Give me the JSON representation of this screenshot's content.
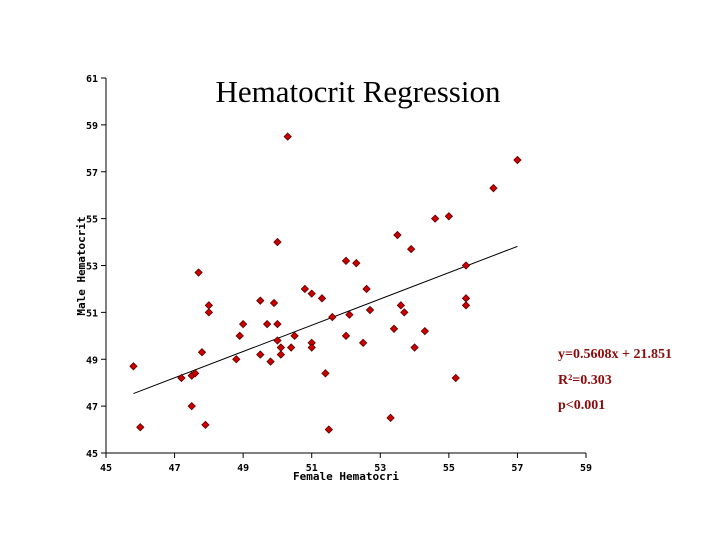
{
  "chart_data": {
    "type": "scatter",
    "title": "Hematocrit Regression",
    "xlabel": "Female Hematocri",
    "ylabel": "Male Hematocrit",
    "xlim": [
      45,
      59
    ],
    "ylim": [
      45,
      61
    ],
    "xticks": [
      "45",
      "47",
      "49",
      "51",
      "53",
      "55",
      "57",
      "59"
    ],
    "yticks": [
      "45",
      "47",
      "49",
      "51",
      "53",
      "55",
      "57",
      "59",
      "61"
    ],
    "grid": false,
    "legend": "none",
    "marker_color": "#cc0000",
    "marker_outline": "#5a0000",
    "annotation_color": "#8b0a0a",
    "annotations": [
      "y=0.5608x + 21.851",
      "R²=0.303",
      "p<0.001"
    ],
    "trendline": {
      "slope": 0.5608,
      "intercept": 21.851,
      "x_range": [
        45.8,
        57.0
      ]
    },
    "series": [
      {
        "points": [
          [
            45.8,
            48.7
          ],
          [
            46.0,
            46.1
          ],
          [
            47.2,
            48.2
          ],
          [
            47.5,
            48.3
          ],
          [
            47.5,
            47.0
          ],
          [
            47.6,
            48.4
          ],
          [
            47.7,
            52.7
          ],
          [
            47.8,
            49.3
          ],
          [
            47.9,
            46.2
          ],
          [
            48.0,
            51.0
          ],
          [
            48.0,
            51.3
          ],
          [
            48.8,
            49.0
          ],
          [
            48.9,
            50.0
          ],
          [
            49.0,
            50.5
          ],
          [
            49.5,
            49.2
          ],
          [
            49.5,
            51.5
          ],
          [
            49.7,
            50.5
          ],
          [
            49.8,
            48.9
          ],
          [
            49.9,
            51.4
          ],
          [
            50.0,
            50.5
          ],
          [
            50.0,
            49.8
          ],
          [
            50.0,
            54.0
          ],
          [
            50.1,
            49.2
          ],
          [
            50.1,
            49.5
          ],
          [
            50.3,
            58.5
          ],
          [
            50.4,
            49.5
          ],
          [
            50.5,
            50.0
          ],
          [
            50.8,
            52.0
          ],
          [
            51.0,
            51.8
          ],
          [
            51.0,
            49.7
          ],
          [
            51.0,
            49.5
          ],
          [
            51.3,
            51.6
          ],
          [
            51.4,
            48.4
          ],
          [
            51.5,
            46.0
          ],
          [
            51.6,
            50.8
          ],
          [
            52.0,
            53.2
          ],
          [
            52.0,
            50.0
          ],
          [
            52.1,
            50.9
          ],
          [
            52.3,
            53.1
          ],
          [
            52.5,
            49.7
          ],
          [
            52.6,
            52.0
          ],
          [
            52.7,
            51.1
          ],
          [
            53.3,
            46.5
          ],
          [
            53.4,
            50.3
          ],
          [
            53.5,
            54.3
          ],
          [
            53.6,
            51.3
          ],
          [
            53.7,
            51.0
          ],
          [
            53.9,
            53.7
          ],
          [
            54.0,
            49.5
          ],
          [
            54.3,
            50.2
          ],
          [
            54.6,
            55.0
          ],
          [
            55.0,
            55.1
          ],
          [
            55.2,
            48.2
          ],
          [
            55.5,
            53.0
          ],
          [
            55.5,
            51.6
          ],
          [
            55.5,
            51.3
          ],
          [
            56.3,
            56.3
          ],
          [
            57.0,
            57.5
          ]
        ]
      }
    ]
  }
}
